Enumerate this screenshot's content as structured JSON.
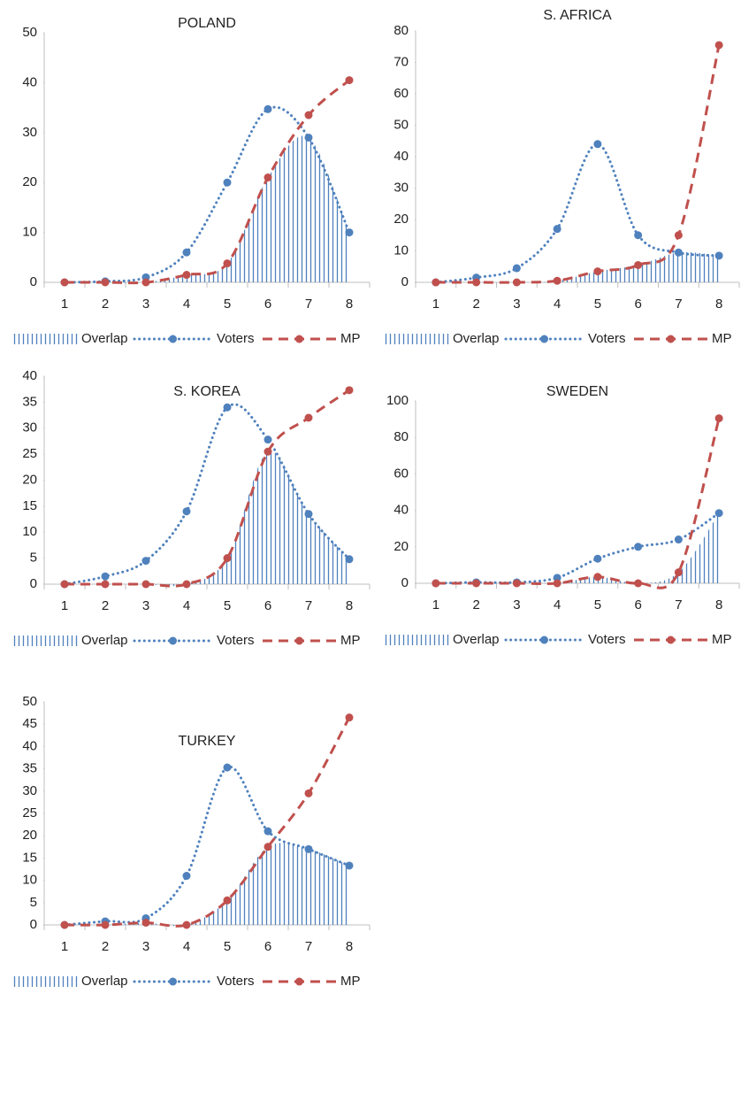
{
  "chart_data": [
    {
      "type": "line",
      "title": "POLAND",
      "categories": [
        "1",
        "2",
        "3",
        "4",
        "5",
        "6",
        "7",
        "8"
      ],
      "ylim": [
        0,
        50
      ],
      "yticks": [
        0,
        10,
        20,
        30,
        40,
        50
      ],
      "series": [
        {
          "name": "Overlap",
          "type": "area",
          "color": "#4f81bd",
          "values": [
            0,
            0,
            0,
            1.5,
            3.8,
            21,
            29,
            10
          ]
        },
        {
          "name": "Voters",
          "type": "line",
          "dash": "dot",
          "color": "#4f81bd",
          "values": [
            0,
            0.2,
            1,
            6,
            20,
            34.7,
            29,
            10
          ]
        },
        {
          "name": "MP",
          "type": "line",
          "dash": "dash",
          "color": "#c0504d",
          "values": [
            0,
            0,
            0,
            1.5,
            3.8,
            21,
            33.5,
            40.5
          ]
        }
      ]
    },
    {
      "type": "line",
      "title": "S. AFRICA",
      "categories": [
        "1",
        "2",
        "3",
        "4",
        "5",
        "6",
        "7",
        "8"
      ],
      "ylim": [
        0,
        80
      ],
      "yticks": [
        0,
        10,
        20,
        30,
        40,
        50,
        60,
        70,
        80
      ],
      "series": [
        {
          "name": "Overlap",
          "type": "area",
          "color": "#4f81bd",
          "values": [
            0,
            0,
            0,
            0.5,
            3.5,
            5.5,
            9.5,
            8.5
          ]
        },
        {
          "name": "Voters",
          "type": "line",
          "dash": "dot",
          "color": "#4f81bd",
          "values": [
            0,
            1.5,
            4.5,
            17,
            44,
            15,
            9.5,
            8.5
          ]
        },
        {
          "name": "MP",
          "type": "line",
          "dash": "dash",
          "color": "#c0504d",
          "values": [
            0,
            0,
            0,
            0.5,
            3.5,
            5.5,
            15,
            75.5
          ]
        }
      ]
    },
    {
      "type": "line",
      "title": "S. KOREA",
      "categories": [
        "1",
        "2",
        "3",
        "4",
        "5",
        "6",
        "7",
        "8"
      ],
      "ylim": [
        0,
        40
      ],
      "yticks": [
        0,
        5,
        10,
        15,
        20,
        25,
        30,
        35,
        40
      ],
      "series": [
        {
          "name": "Overlap",
          "type": "area",
          "color": "#4f81bd",
          "values": [
            0,
            0,
            0,
            0,
            5,
            25.5,
            13.5,
            4.8
          ]
        },
        {
          "name": "Voters",
          "type": "line",
          "dash": "dot",
          "color": "#4f81bd",
          "values": [
            0,
            1.5,
            4.5,
            14,
            34,
            27.8,
            13.5,
            4.8
          ]
        },
        {
          "name": "MP",
          "type": "line",
          "dash": "dash",
          "color": "#c0504d",
          "values": [
            0,
            0,
            0,
            0,
            5,
            25.5,
            32,
            37.3
          ]
        }
      ]
    },
    {
      "type": "line",
      "title": "SWEDEN",
      "categories": [
        "1",
        "2",
        "3",
        "4",
        "5",
        "6",
        "7",
        "8"
      ],
      "ylim": [
        0,
        100
      ],
      "yticks": [
        0,
        20,
        40,
        60,
        80,
        100
      ],
      "series": [
        {
          "name": "Overlap",
          "type": "area",
          "color": "#4f81bd",
          "values": [
            0,
            0,
            0,
            0,
            3.5,
            0,
            6,
            38.5
          ]
        },
        {
          "name": "Voters",
          "type": "line",
          "dash": "dot",
          "color": "#4f81bd",
          "values": [
            0,
            0.5,
            0.5,
            3,
            13.5,
            20,
            24,
            38.5
          ]
        },
        {
          "name": "MP",
          "type": "line",
          "dash": "dash",
          "color": "#c0504d",
          "values": [
            0,
            0,
            0,
            0,
            3.5,
            0,
            6,
            90.5
          ]
        }
      ]
    },
    {
      "type": "line",
      "title": "TURKEY",
      "categories": [
        "1",
        "2",
        "3",
        "4",
        "5",
        "6",
        "7",
        "8"
      ],
      "ylim": [
        0,
        50
      ],
      "yticks": [
        0,
        5,
        10,
        15,
        20,
        25,
        30,
        35,
        40,
        45,
        50
      ],
      "series": [
        {
          "name": "Overlap",
          "type": "area",
          "color": "#4f81bd",
          "values": [
            0,
            0,
            0.5,
            0,
            5.5,
            17.5,
            17,
            13.3
          ]
        },
        {
          "name": "Voters",
          "type": "line",
          "dash": "dot",
          "color": "#4f81bd",
          "values": [
            0,
            0.8,
            1.5,
            11,
            35.3,
            21,
            17,
            13.3
          ]
        },
        {
          "name": "MP",
          "type": "line",
          "dash": "dash",
          "color": "#c0504d",
          "values": [
            0,
            0,
            0.5,
            0,
            5.5,
            17.5,
            29.5,
            46.5
          ]
        }
      ]
    }
  ]
}
